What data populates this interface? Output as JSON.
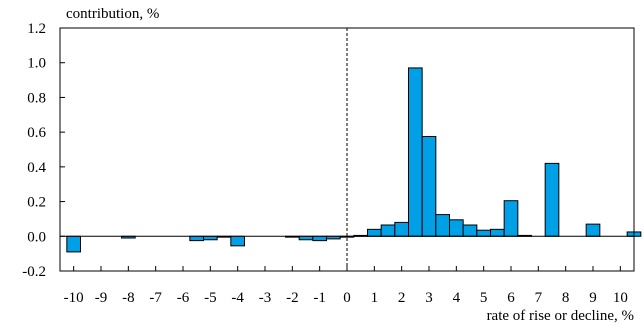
{
  "chart_data": {
    "type": "bar",
    "ylabel": "contribution, %",
    "xlabel": "rate of rise or decline, %",
    "xlim": [
      -10.5,
      10.5
    ],
    "ylim": [
      -0.2,
      1.2
    ],
    "yticks": [
      {
        "value": 1.2,
        "label": "1.2"
      },
      {
        "value": 1.0,
        "label": "1.0"
      },
      {
        "value": 0.8,
        "label": "0.8"
      },
      {
        "value": 0.6,
        "label": "0.6"
      },
      {
        "value": 0.4,
        "label": "0.4"
      },
      {
        "value": 0.2,
        "label": "0.2"
      },
      {
        "value": 0.0,
        "label": "0.0"
      },
      {
        "value": -0.2,
        "label": "-0.2"
      }
    ],
    "xticks": [
      {
        "value": -10,
        "label": "-10"
      },
      {
        "value": -9,
        "label": "-9"
      },
      {
        "value": -8,
        "label": "-8"
      },
      {
        "value": -7,
        "label": "-7"
      },
      {
        "value": -6,
        "label": "-6"
      },
      {
        "value": -5,
        "label": "-5"
      },
      {
        "value": -4,
        "label": "-4"
      },
      {
        "value": -3,
        "label": "-3"
      },
      {
        "value": -2,
        "label": "-2"
      },
      {
        "value": -1,
        "label": "-1"
      },
      {
        "value": 0,
        "label": "0"
      },
      {
        "value": 1,
        "label": "1"
      },
      {
        "value": 2,
        "label": "2"
      },
      {
        "value": 3,
        "label": "3"
      },
      {
        "value": 4,
        "label": "4"
      },
      {
        "value": 5,
        "label": "5"
      },
      {
        "value": 6,
        "label": "6"
      },
      {
        "value": 7,
        "label": "7"
      },
      {
        "value": 8,
        "label": "8"
      },
      {
        "value": 9,
        "label": "9"
      },
      {
        "value": 10,
        "label": "10"
      }
    ],
    "bar_width": 0.5,
    "bars": [
      {
        "x": -10,
        "y": -0.09
      },
      {
        "x": -8,
        "y": -0.01
      },
      {
        "x": -5.5,
        "y": -0.025
      },
      {
        "x": -5,
        "y": -0.02
      },
      {
        "x": -4.5,
        "y": -0.005
      },
      {
        "x": -4,
        "y": -0.055
      },
      {
        "x": -2,
        "y": -0.005
      },
      {
        "x": -1.5,
        "y": -0.02
      },
      {
        "x": -1,
        "y": -0.025
      },
      {
        "x": -0.5,
        "y": -0.015
      },
      {
        "x": 0,
        "y": -0.005
      },
      {
        "x": 0.5,
        "y": 0.005
      },
      {
        "x": 1,
        "y": 0.04
      },
      {
        "x": 1.5,
        "y": 0.065
      },
      {
        "x": 2,
        "y": 0.08
      },
      {
        "x": 2.5,
        "y": 0.97
      },
      {
        "x": 3,
        "y": 0.575
      },
      {
        "x": 3.5,
        "y": 0.125
      },
      {
        "x": 4,
        "y": 0.095
      },
      {
        "x": 4.5,
        "y": 0.065
      },
      {
        "x": 5,
        "y": 0.035
      },
      {
        "x": 5.5,
        "y": 0.04
      },
      {
        "x": 6,
        "y": 0.205
      },
      {
        "x": 6.5,
        "y": 0.005
      },
      {
        "x": 7.5,
        "y": 0.42
      },
      {
        "x": 9,
        "y": 0.07
      },
      {
        "x": 10.5,
        "y": 0.025
      }
    ],
    "zero_divider_x": 0,
    "grid": false,
    "legend": "none",
    "colors": {
      "bar_fill": "#00a0e6",
      "bar_stroke": "#000000",
      "axis": "#000000",
      "negative_tick_label": "#e00000"
    }
  }
}
